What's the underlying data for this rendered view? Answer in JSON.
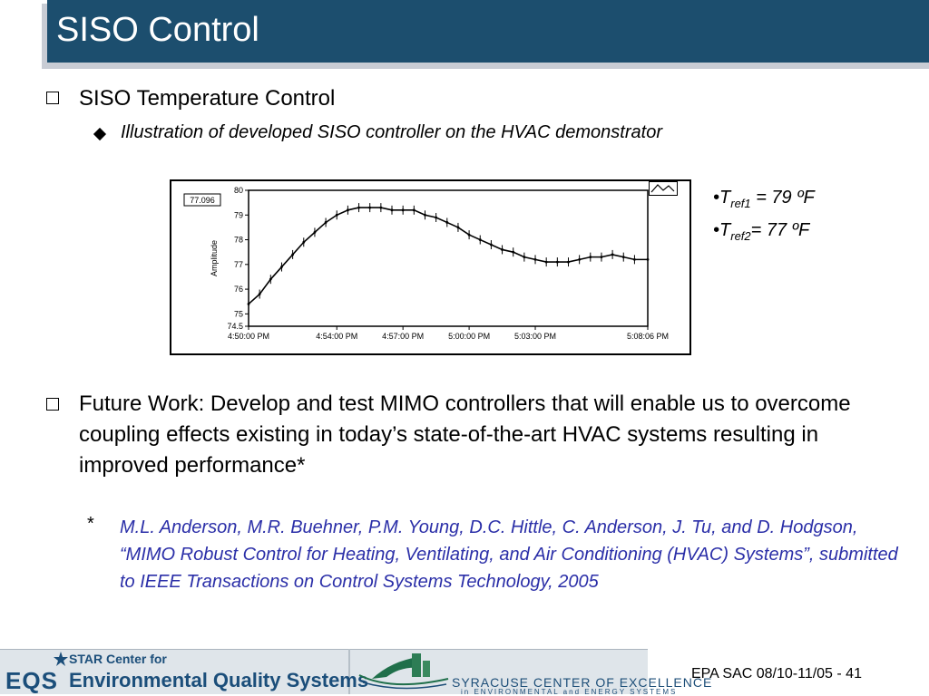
{
  "slide": {
    "title": "SISO Control",
    "bullet1": "SISO Temperature Control",
    "bullet1_sub": "Illustration of developed SISO controller on the HVAC demonstrator",
    "bullet2": "Future Work: Develop and test MIMO controllers that will enable us to overcome coupling effects existing in today’s state-of-the-art HVAC systems resulting in improved performance*",
    "reference_mark": "*",
    "reference": "M.L. Anderson, M.R. Buehner, P.M. Young, D.C. Hittle, C. Anderson, J.  Tu, and D. Hodgson, “MIMO Robust Control for Heating, Ventilating, and Air Conditioning (HVAC) Systems”, submitted to IEEE Transactions on Control Systems Technology, 2005",
    "reference_color": "#2b2fa8",
    "title_bar_color": "#1c4e6e"
  },
  "notes": {
    "tref1_base": "T",
    "tref1_sub": "ref1",
    "tref1_value": " = 79 ºF",
    "tref2_base": "T",
    "tref2_sub": "ref2",
    "tref2_value": "= 77 ºF"
  },
  "chart_data": {
    "type": "line",
    "title": "",
    "xlabel": "",
    "ylabel": "Amplitude",
    "readout": "77.096",
    "ylim": [
      74.5,
      80
    ],
    "yticks": [
      "80",
      "79",
      "78",
      "77",
      "76",
      "75",
      "74.5"
    ],
    "xticks": [
      "4:50:00 PM",
      "4:54:00 PM",
      "4:57:00 PM",
      "5:00:00 PM",
      "5:03:00 PM",
      "5:08:06 PM"
    ],
    "xrange_minutes": [
      0,
      18.1
    ],
    "series": [
      {
        "values_x_minutes": [
          0,
          0.5,
          1,
          1.5,
          2,
          2.5,
          3,
          3.5,
          4,
          4.5,
          5,
          5.5,
          6,
          6.5,
          7,
          7.5,
          8,
          8.5,
          9,
          9.5,
          10,
          10.5,
          11,
          11.5,
          12,
          12.5,
          13,
          13.5,
          14,
          14.5,
          15,
          15.5,
          16,
          16.5,
          17,
          17.5,
          18.1
        ],
        "values": [
          75.4,
          75.8,
          76.4,
          76.9,
          77.4,
          77.9,
          78.3,
          78.7,
          79.0,
          79.2,
          79.3,
          79.3,
          79.3,
          79.2,
          79.2,
          79.2,
          79.0,
          78.9,
          78.7,
          78.5,
          78.2,
          78.0,
          77.8,
          77.6,
          77.5,
          77.3,
          77.2,
          77.1,
          77.1,
          77.1,
          77.2,
          77.3,
          77.3,
          77.4,
          77.3,
          77.2,
          77.2
        ]
      }
    ]
  },
  "footer": {
    "logo1_title": "STAR Center for",
    "logo1_eqs": "EQS",
    "logo1_name": "Environmental Quality Systems",
    "logo2_name": "SYRACUSE CENTER OF EXCELLENCE",
    "logo2_sub": "in ENVIRONMENTAL and ENERGY SYSTEMS",
    "slide_info": "EPA SAC 08/10-11/05 - 41"
  }
}
